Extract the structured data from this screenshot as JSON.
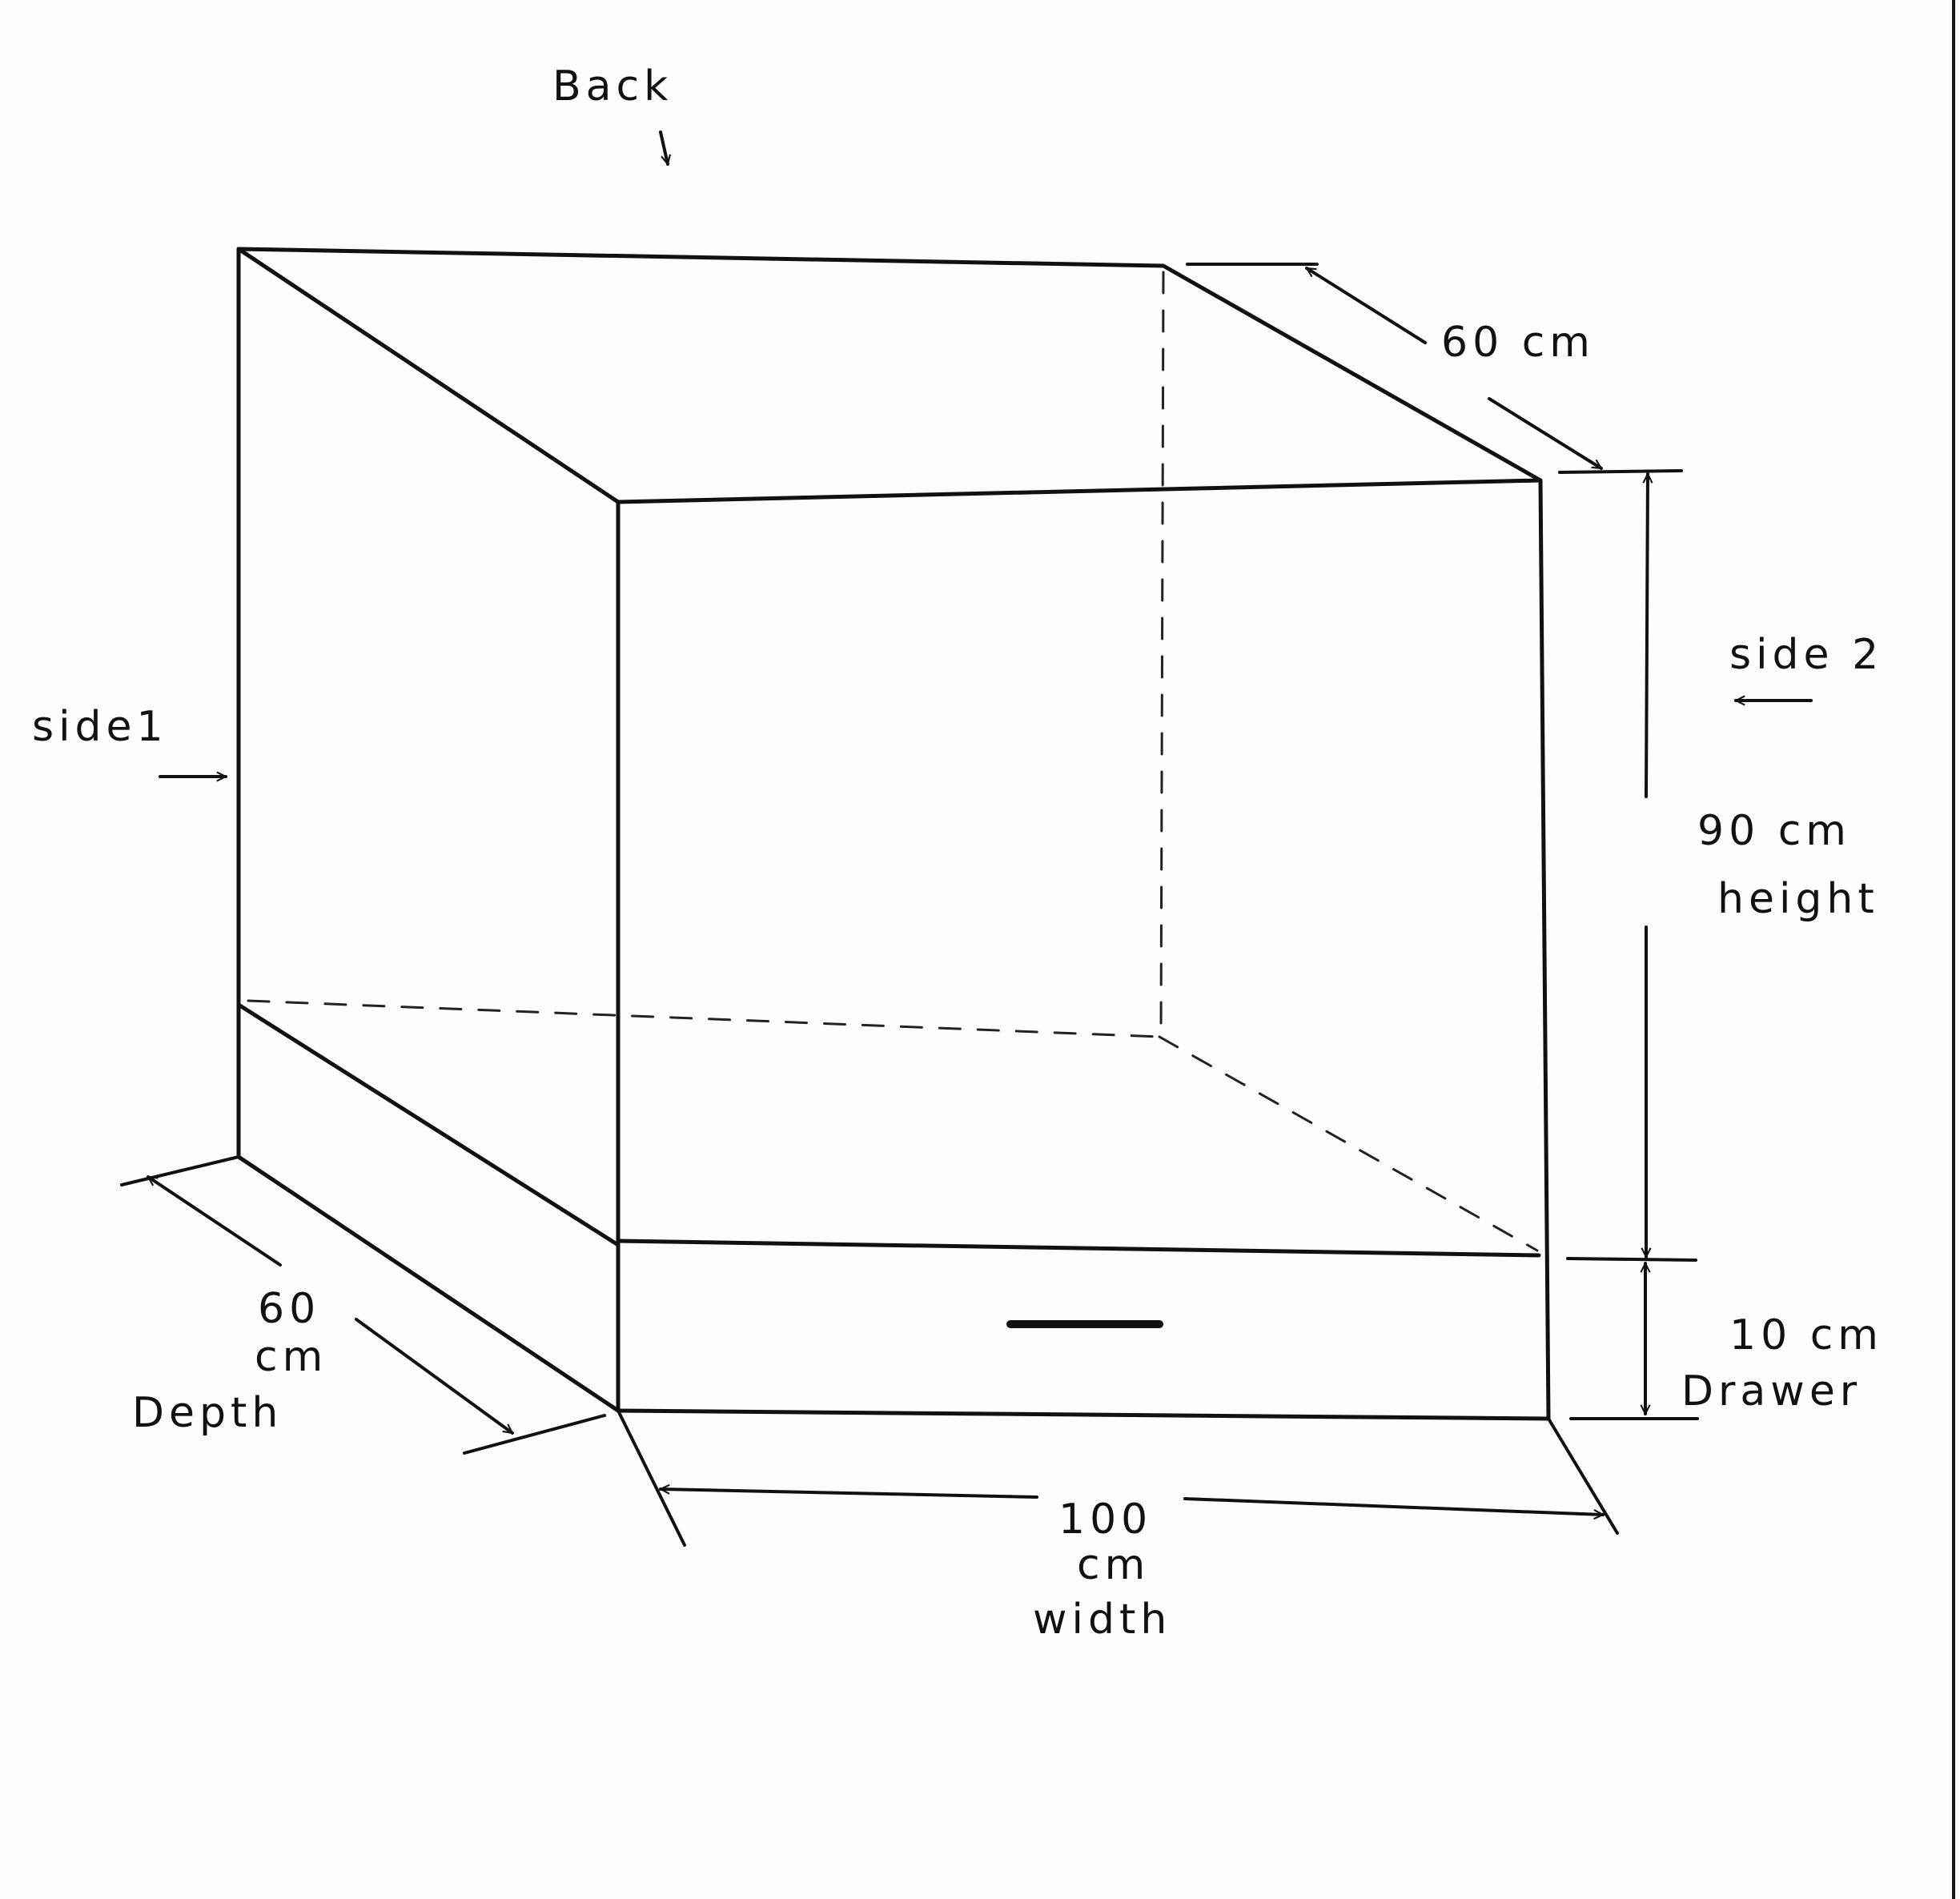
{
  "labels": {
    "back": "Back",
    "side1": "side1",
    "side2": "side 2",
    "top_depth": "60 cm",
    "height_value": "90 cm",
    "height_word": "height",
    "drawer_value": "10 cm",
    "drawer_word": "Drawer",
    "depth_value": "60",
    "depth_unit": "cm",
    "depth_word": "Depth",
    "width_value": "100",
    "width_unit": "cm",
    "width_word": "width"
  }
}
